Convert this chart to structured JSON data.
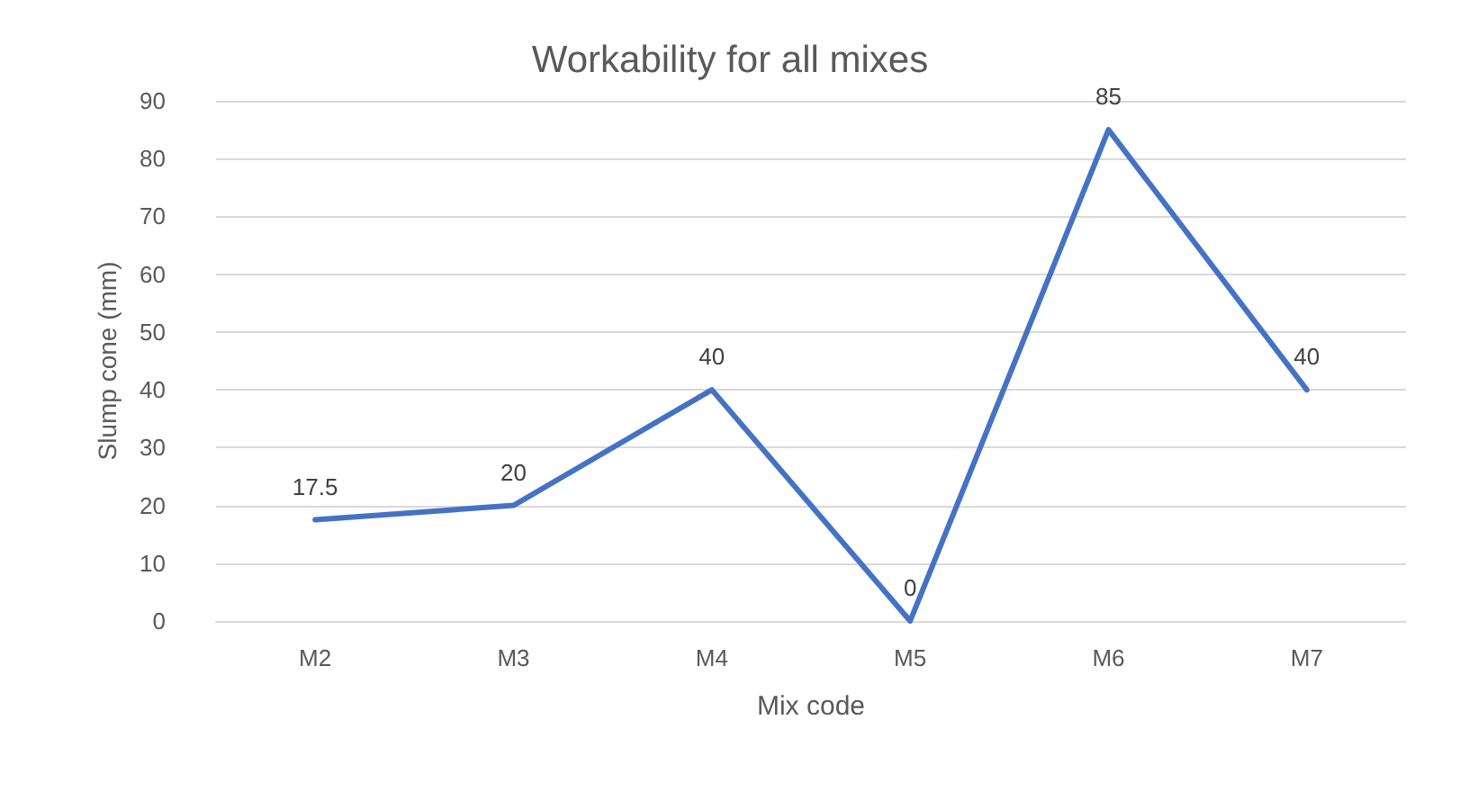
{
  "chart_data": {
    "type": "line",
    "title": "Workability for all mixes",
    "xlabel": "Mix code",
    "ylabel": "Slump cone (mm)",
    "categories": [
      "M2",
      "M3",
      "M4",
      "M5",
      "M6",
      "M7"
    ],
    "series": [
      {
        "color": "#4472c4",
        "values": [
          17.5,
          20,
          40,
          0,
          85,
          40
        ]
      }
    ],
    "ylim": [
      0,
      90
    ],
    "yticks": [
      0,
      10,
      20,
      30,
      40,
      50,
      60,
      70,
      80,
      90
    ],
    "grid": "y",
    "data_labels": true,
    "marker": "none",
    "line_style": "solid"
  }
}
